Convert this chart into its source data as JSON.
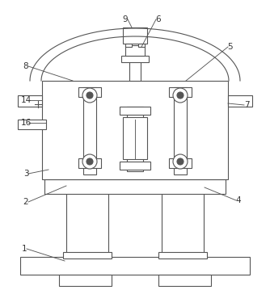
{
  "bg_color": "#ffffff",
  "line_color": "#555555",
  "lw": 0.8,
  "fig_width": 3.34,
  "fig_height": 3.59,
  "dpi": 100
}
